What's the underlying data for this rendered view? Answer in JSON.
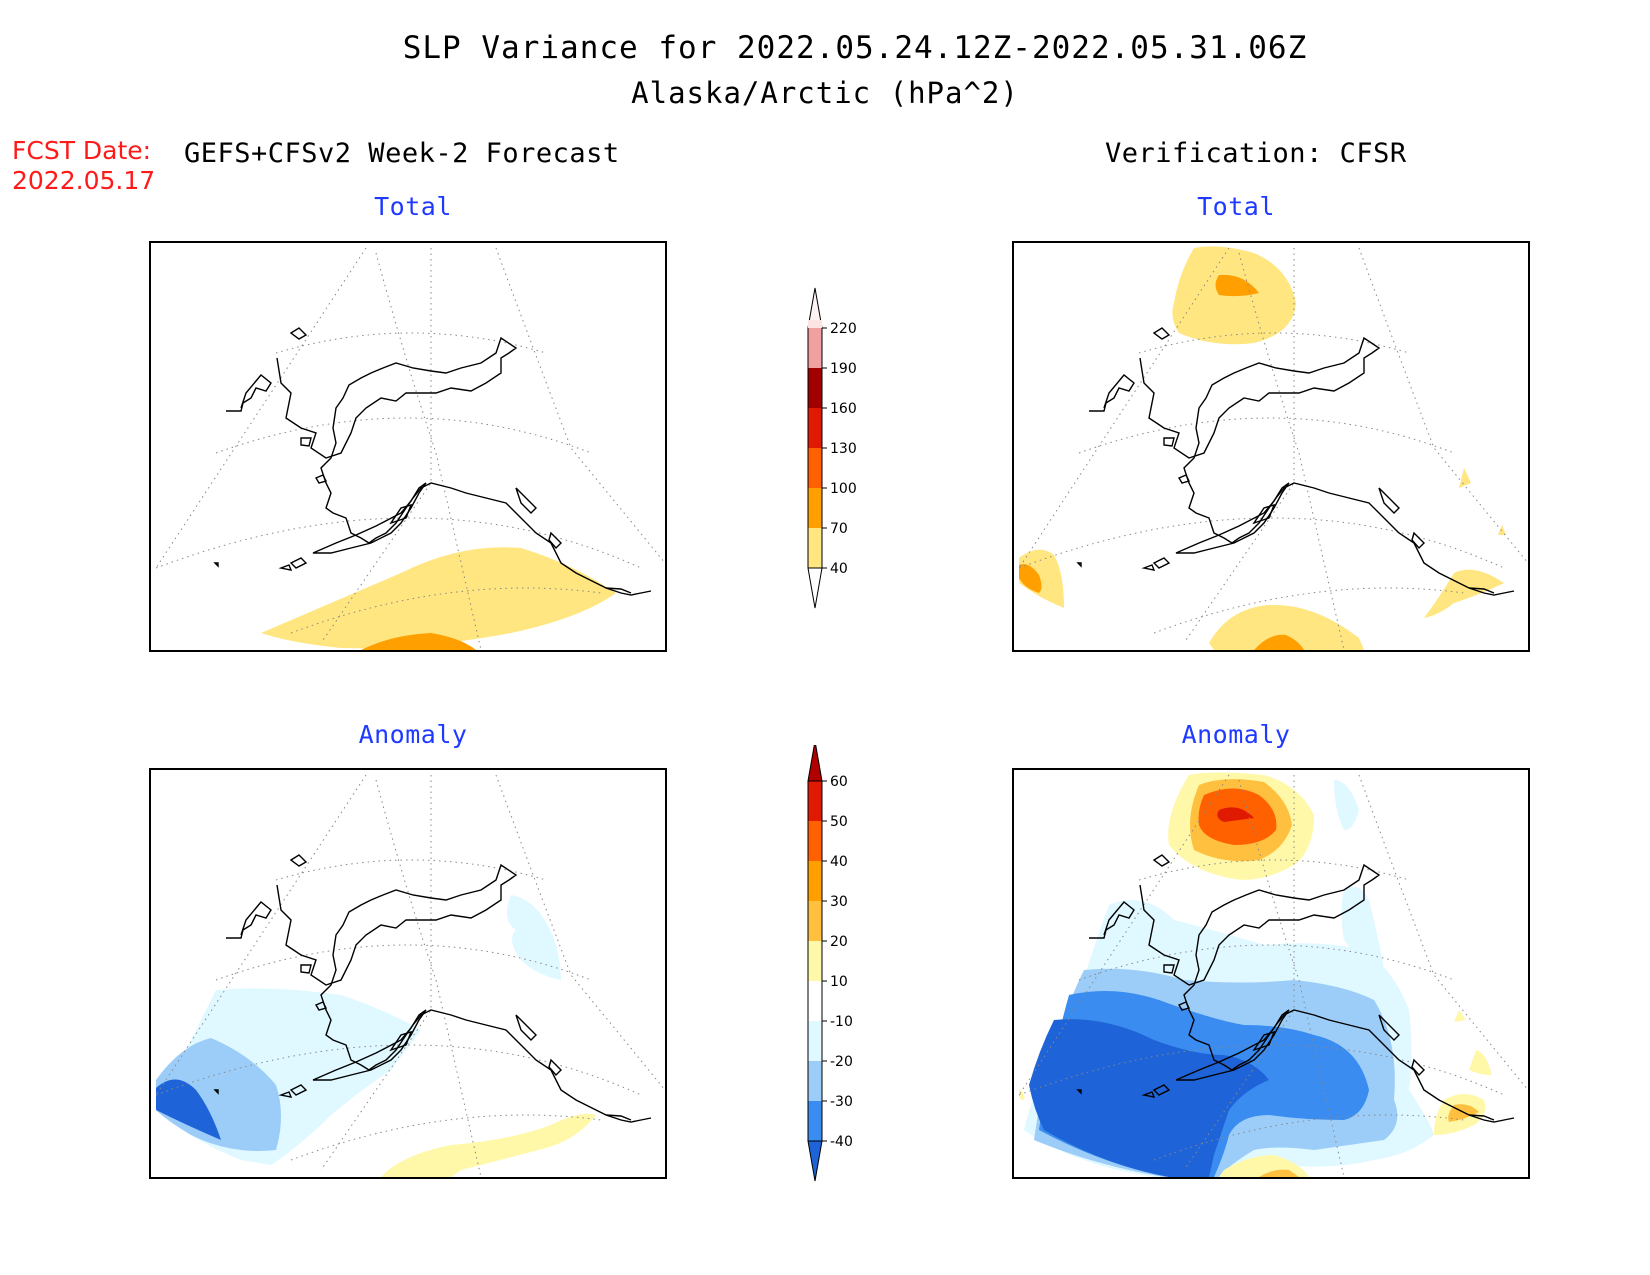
{
  "title": {
    "line1": "SLP Variance for 2022.05.24.12Z-2022.05.31.06Z",
    "line2": "Alaska/Arctic (hPa^2)"
  },
  "forecast": {
    "date_label": "FCST Date:",
    "date_value": "2022.05.17",
    "heading": "GEFS+CFSv2 Week-2 Forecast"
  },
  "verification": {
    "heading": "Verification: CFSR"
  },
  "panels": {
    "fcst_total_title": "Total",
    "ver_total_title": "Total",
    "fcst_anom_title": "Anomaly",
    "ver_anom_title": "Anomaly"
  },
  "colorbars": {
    "total": {
      "levels": [
        "40",
        "70",
        "100",
        "130",
        "160",
        "190",
        "220"
      ],
      "colors": [
        "#ffe680",
        "#ffa000",
        "#ff6000",
        "#e01a00",
        "#a00000",
        "#f0a0a0",
        "#fde4e4"
      ]
    },
    "anomaly": {
      "levels": [
        "-40",
        "-30",
        "-20",
        "-10",
        "10",
        "20",
        "30",
        "40",
        "50",
        "60"
      ],
      "colors": [
        "#1e64d8",
        "#3a8cf0",
        "#9ccdf8",
        "#e0f8ff",
        "#ffffff",
        "#fff8a8",
        "#ffc040",
        "#ffa000",
        "#ff6000",
        "#e01a00",
        "#b00000"
      ]
    }
  },
  "shading_colors": {
    "total_40_70": "#ffe680",
    "total_70_100": "#ffa000",
    "anom_pos_10_20": "#fff8a8",
    "anom_pos_20_30": "#ffc040",
    "anom_pos_30_40": "#ffa000",
    "anom_pos_40_50": "#ff6000",
    "anom_pos_50_60": "#e01a00",
    "anom_neg_10_20": "#e0f8ff",
    "anom_neg_20_30": "#9ccdf8",
    "anom_neg_30_40": "#3a8cf0",
    "anom_neg_40": "#1e64d8"
  },
  "map": {
    "region": "Alaska/Arctic",
    "projection": "polar stereographic",
    "coastline_color": "#000000",
    "gridline_style": "dotted"
  }
}
